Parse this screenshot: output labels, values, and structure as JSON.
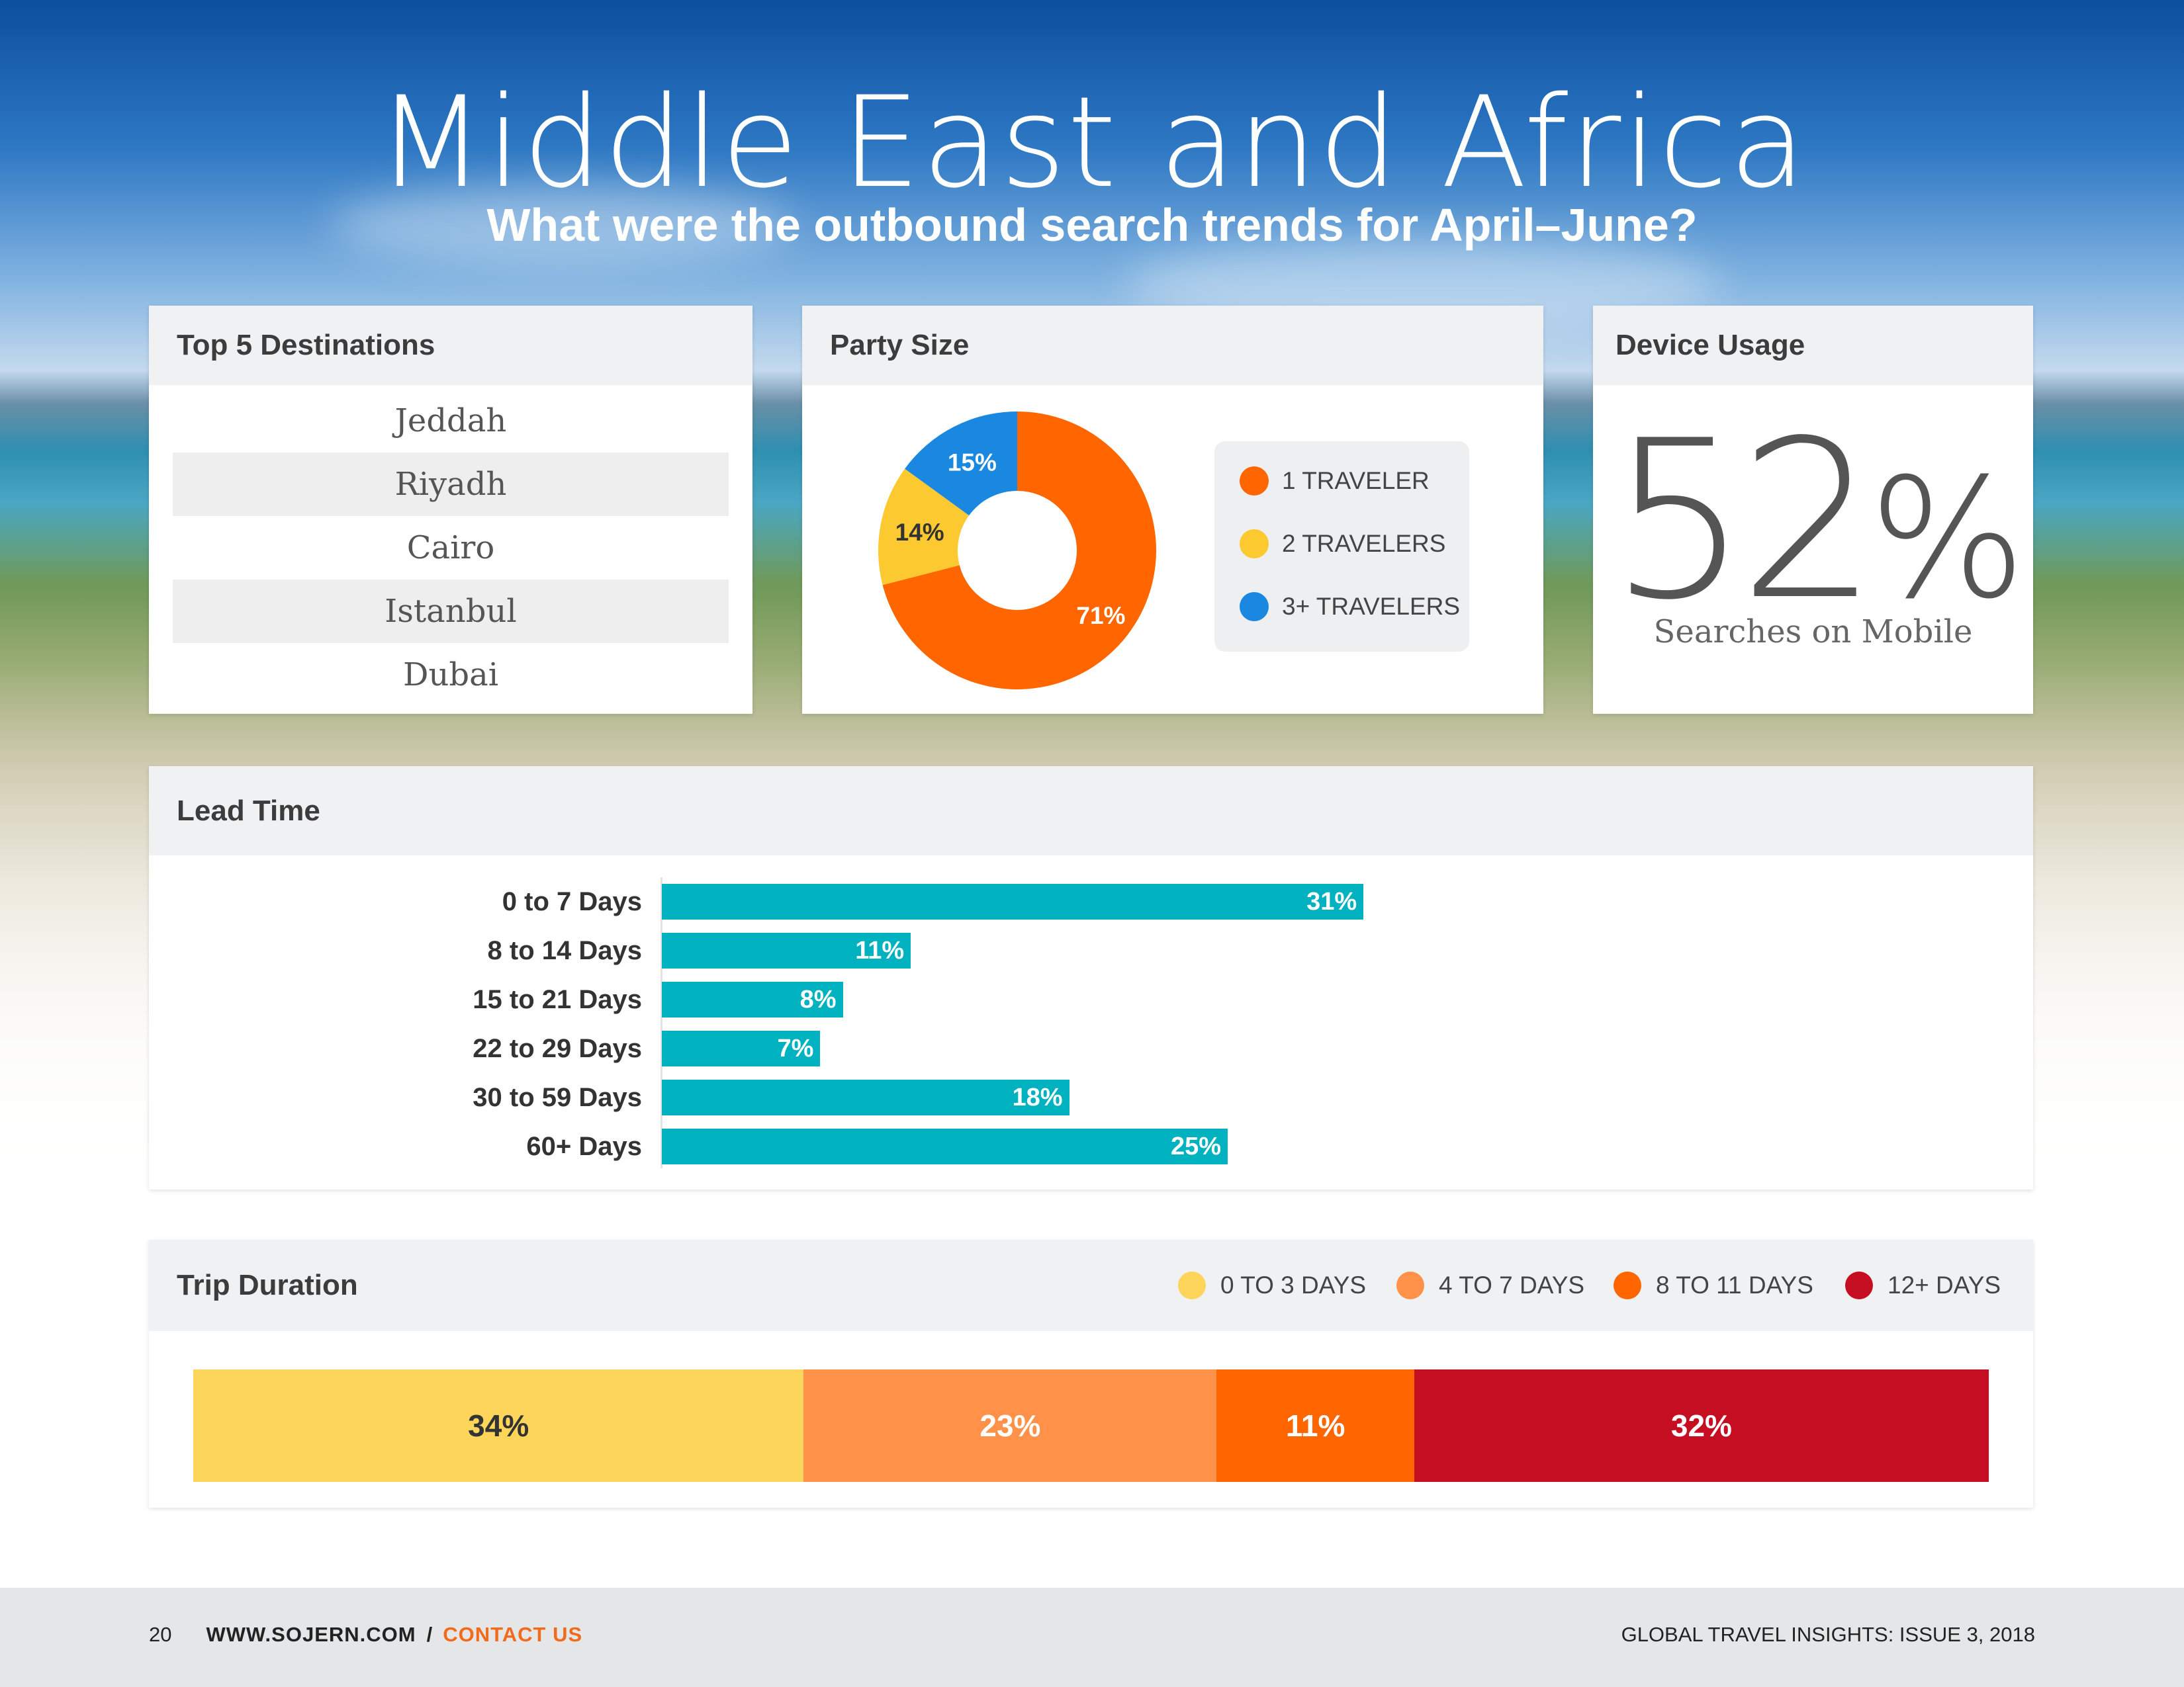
{
  "header": {
    "title": "Middle East and Africa",
    "subtitle": "What were the outbound search trends for April–June?"
  },
  "destinations": {
    "title": "Top 5 Destinations",
    "items": [
      "Jeddah",
      "Riyadh",
      "Cairo",
      "Istanbul",
      "Dubai"
    ]
  },
  "party_size": {
    "title": "Party Size",
    "legend": [
      "1 TRAVELER",
      "2 TRAVELERS",
      "3+ TRAVELERS"
    ]
  },
  "device": {
    "title": "Device Usage",
    "value": "52",
    "unit": "%",
    "label": "Searches on Mobile"
  },
  "lead_time": {
    "title": "Lead Time"
  },
  "trip_duration": {
    "title": "Trip Duration"
  },
  "footer": {
    "page": "20",
    "site": "WWW.SOJERN.COM",
    "sep": "/",
    "contact": "CONTACT US",
    "publication": "GLOBAL TRAVEL INSIGHTS: ISSUE 3, 2018"
  },
  "colors": {
    "orange": "#ff6600",
    "yellow": "#fdc930",
    "blue": "#1a88e0",
    "teal": "#00b2bf",
    "td_yellow": "#fdd55a",
    "td_light_orange": "#ff9248",
    "td_orange": "#ff6600",
    "td_red": "#c50e22",
    "accent": "#f26a1b"
  },
  "chart_data": [
    {
      "type": "pie",
      "title": "Party Size",
      "labels": [
        "1 TRAVELER",
        "2 TRAVELERS",
        "3+ TRAVELERS"
      ],
      "values": [
        71,
        14,
        15
      ],
      "data_labels": [
        "71%",
        "14%",
        "15%"
      ],
      "colors": [
        "#ff6600",
        "#fdc930",
        "#1a88e0"
      ],
      "donut": true,
      "legend": "right"
    },
    {
      "type": "bar",
      "orientation": "horizontal",
      "title": "Lead Time",
      "categories": [
        "0 to 7 Days",
        "8 to 14 Days",
        "15 to 21 Days",
        "22 to 29 Days",
        "30 to 59 Days",
        "60+ Days"
      ],
      "values": [
        31,
        11,
        8,
        7,
        18,
        25
      ],
      "data_labels": [
        "31%",
        "11%",
        "8%",
        "7%",
        "18%",
        "25%"
      ],
      "xlim": [
        0,
        50
      ],
      "grid": false
    },
    {
      "type": "bar",
      "orientation": "stacked-horizontal",
      "title": "Trip Duration",
      "categories": [
        "0 TO 3 DAYS",
        "4 TO 7 DAYS",
        "8 TO 11 DAYS",
        "12+ DAYS"
      ],
      "values": [
        34,
        23,
        11,
        32
      ],
      "data_labels": [
        "34%",
        "23%",
        "11%",
        "32%"
      ],
      "colors": [
        "#fdd55a",
        "#ff9248",
        "#ff6600",
        "#c50e22"
      ],
      "legend": "top-right"
    }
  ]
}
